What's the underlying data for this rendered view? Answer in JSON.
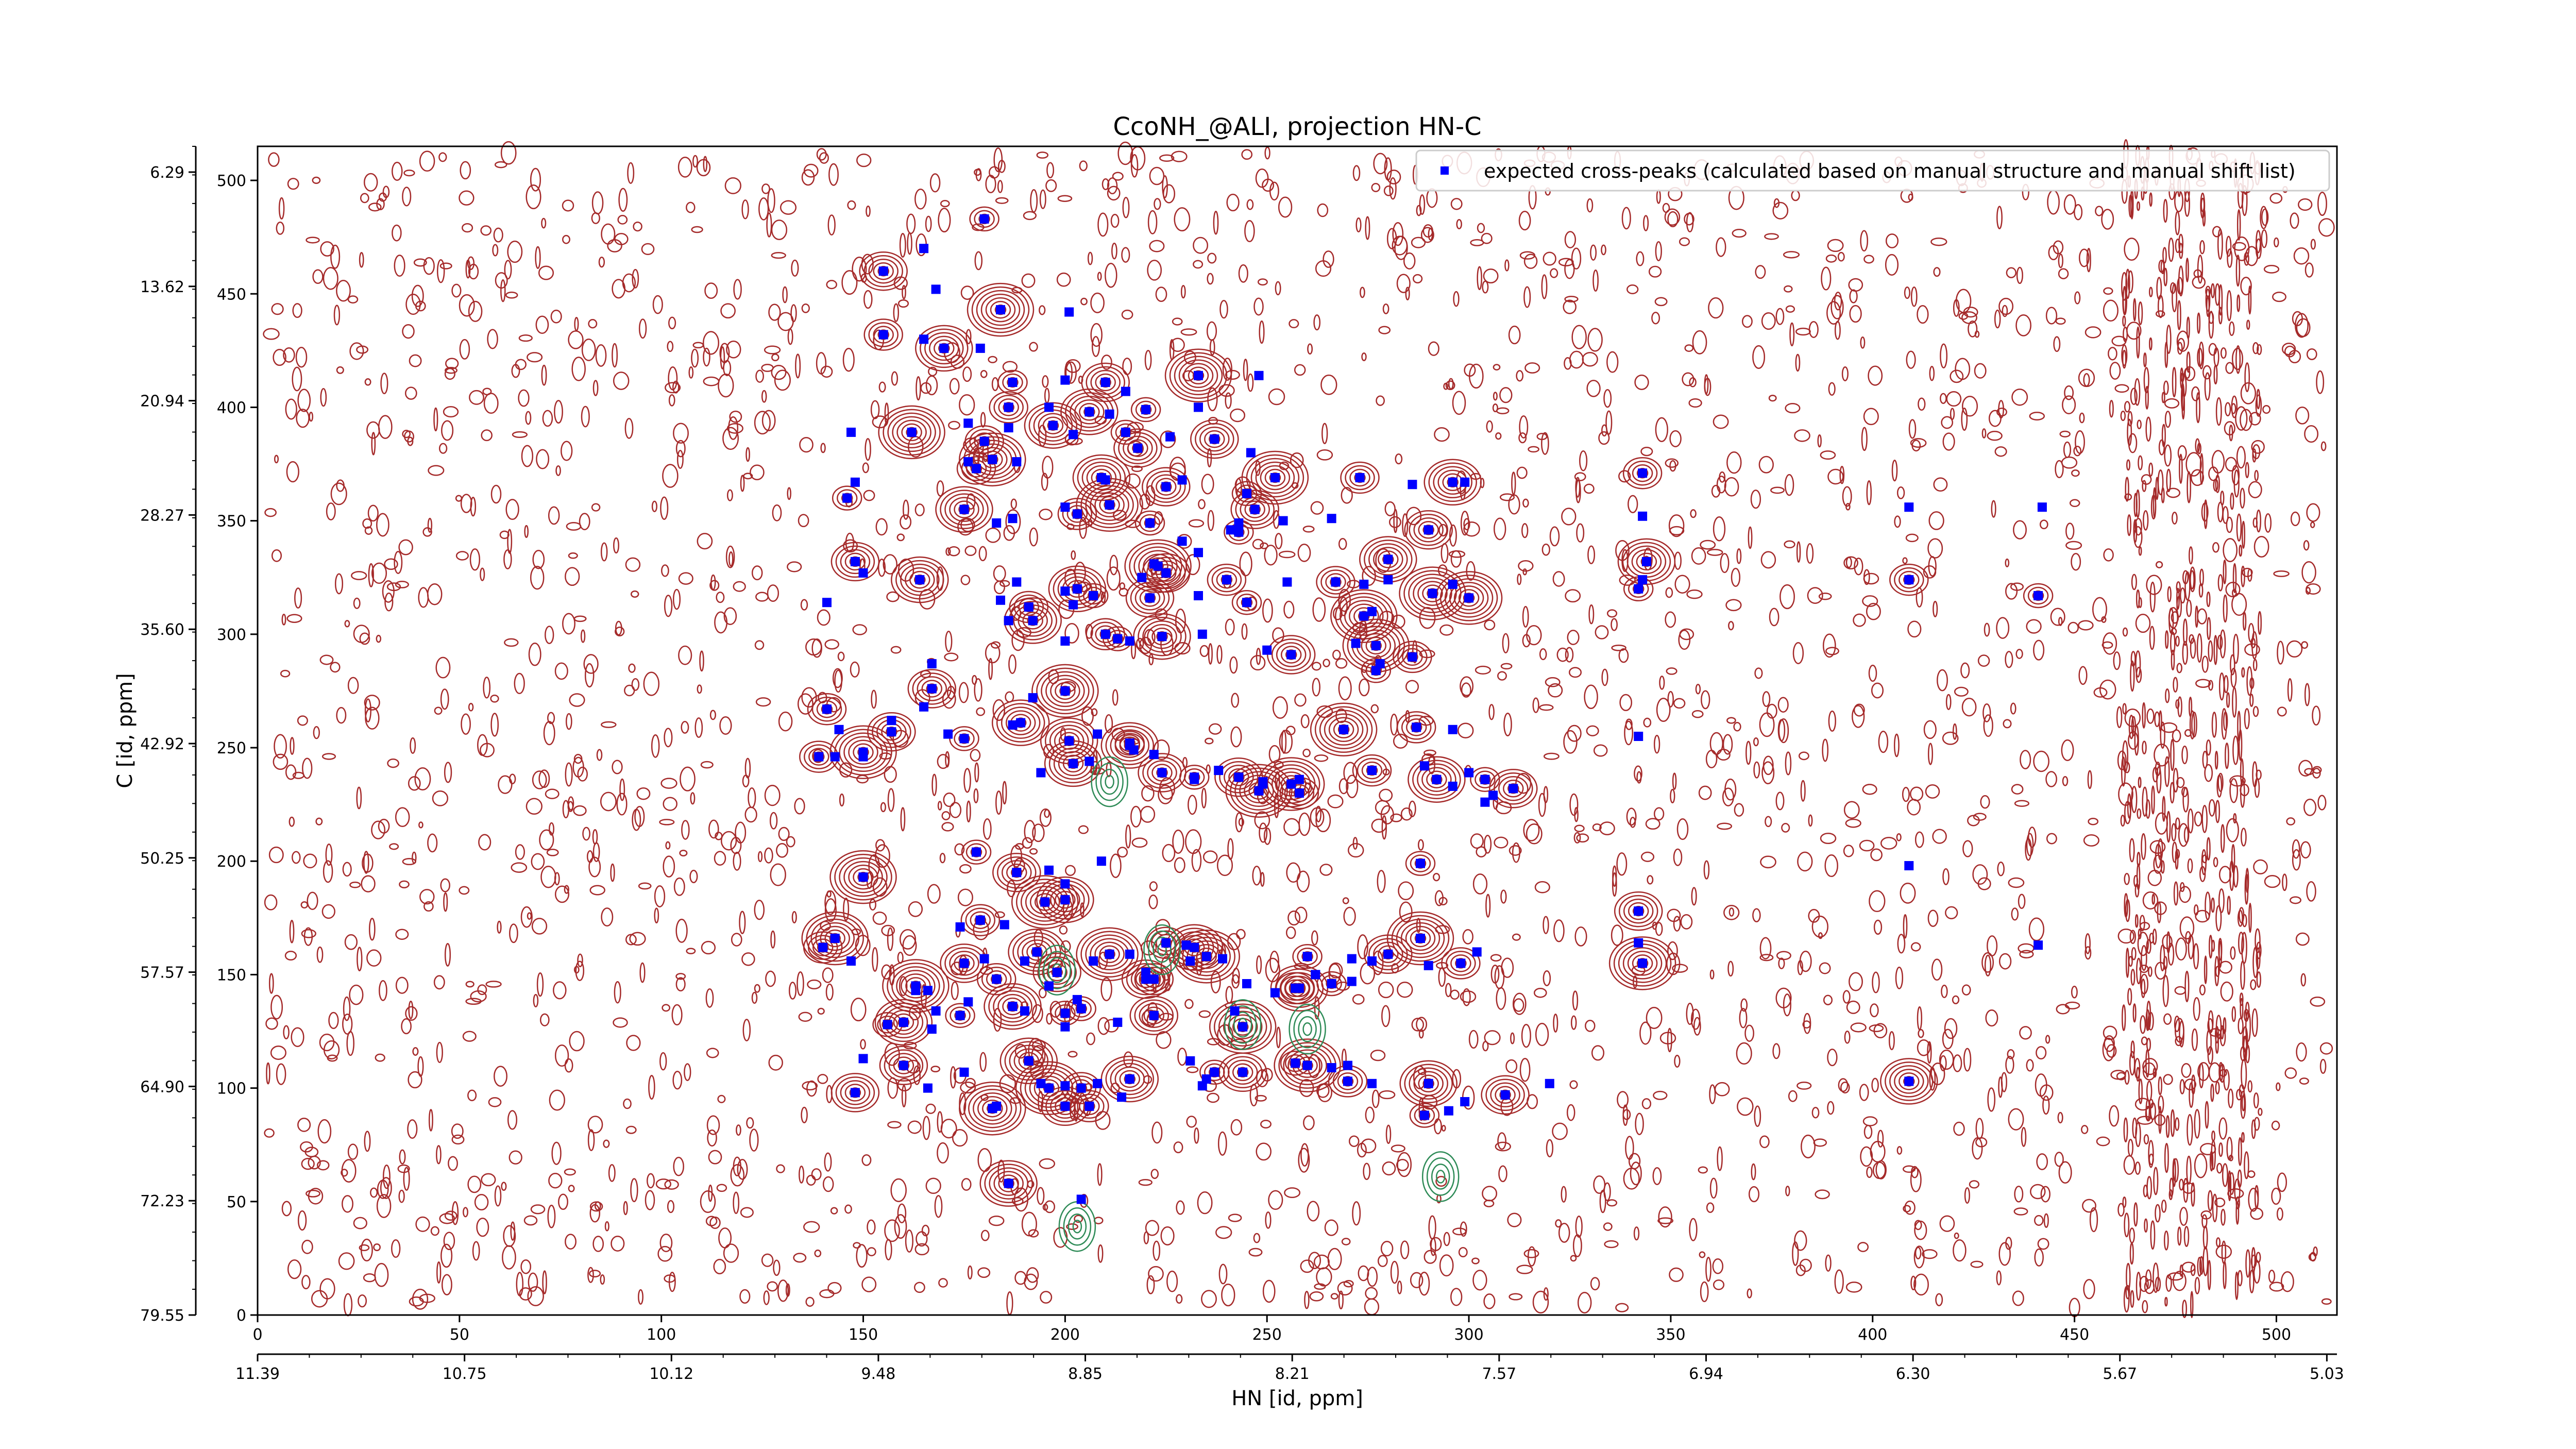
{
  "chart_data": {
    "type": "scatter",
    "title": "CcoNH_@ALI, projection HN-C",
    "xlabel": "HN [id, ppm]",
    "ylabel": "C [id, ppm]",
    "xlim": [
      0,
      515
    ],
    "ylim": [
      0,
      515
    ],
    "grid": false,
    "legend_position": "top-right",
    "bottom_ticks": [
      "0",
      "50",
      "100",
      "150",
      "200",
      "250",
      "300",
      "350",
      "400",
      "450",
      "500"
    ],
    "right_ticks": [
      "0",
      "50",
      "100",
      "150",
      "200",
      "250",
      "300",
      "350",
      "400",
      "450",
      "500"
    ],
    "hn_ppm_ticks": [
      "11.39",
      "10.75",
      "10.12",
      "9.48",
      "8.85",
      "8.21",
      "7.57",
      "6.94",
      "6.30",
      "5.67",
      "5.03"
    ],
    "c_ppm_ticks": [
      "6.29",
      "13.62",
      "20.94",
      "28.27",
      "35.60",
      "42.92",
      "50.25",
      "57.57",
      "64.90",
      "72.23",
      "79.55"
    ],
    "colors": {
      "peaks": "#0000ff",
      "positive_contours": "#a52a2a",
      "negative_contours": "#2e8b57",
      "axes": "#000000",
      "legend_border": "#cccccc"
    },
    "series": [
      {
        "name": "expected cross-peaks (calculated based on manual structure and manual shift list)",
        "color": "#0000ff",
        "points": [
          [
            180,
            483
          ],
          [
            165,
            470
          ],
          [
            155,
            460
          ],
          [
            168,
            452
          ],
          [
            184,
            443
          ],
          [
            201,
            442
          ],
          [
            155,
            432
          ],
          [
            165,
            430
          ],
          [
            170,
            426
          ],
          [
            179,
            426
          ],
          [
            187,
            411
          ],
          [
            200,
            412
          ],
          [
            210,
            411
          ],
          [
            215,
            407
          ],
          [
            233,
            414
          ],
          [
            248,
            414
          ],
          [
            186,
            400
          ],
          [
            196,
            400
          ],
          [
            206,
            398
          ],
          [
            211,
            397
          ],
          [
            220,
            399
          ],
          [
            233,
            400
          ],
          [
            237,
            386
          ],
          [
            147,
            389
          ],
          [
            162,
            389
          ],
          [
            176,
            393
          ],
          [
            180,
            385
          ],
          [
            186,
            391
          ],
          [
            197,
            392
          ],
          [
            202,
            388
          ],
          [
            215,
            389
          ],
          [
            226,
            387
          ],
          [
            218,
            382
          ],
          [
            176,
            376
          ],
          [
            182,
            377
          ],
          [
            188,
            376
          ],
          [
            178,
            373
          ],
          [
            246,
            380
          ],
          [
            209,
            369
          ],
          [
            148,
            367
          ],
          [
            146,
            360
          ],
          [
            210,
            368
          ],
          [
            225,
            365
          ],
          [
            229,
            368
          ],
          [
            252,
            369
          ],
          [
            241,
            346
          ],
          [
            273,
            369
          ],
          [
            286,
            366
          ],
          [
            296,
            367
          ],
          [
            299,
            367
          ],
          [
            245,
            362
          ],
          [
            243,
            349
          ],
          [
            247,
            355
          ],
          [
            254,
            350
          ],
          [
            211,
            357
          ],
          [
            200,
            356
          ],
          [
            203,
            353
          ],
          [
            187,
            351
          ],
          [
            175,
            355
          ],
          [
            183,
            349
          ],
          [
            221,
            349
          ],
          [
            233,
            336
          ],
          [
            148,
            332
          ],
          [
            150,
            327
          ],
          [
            223,
            330
          ],
          [
            225,
            327
          ],
          [
            240,
            324
          ],
          [
            188,
            323
          ],
          [
            164,
            324
          ],
          [
            222,
            331
          ],
          [
            245,
            314
          ],
          [
            184,
            315
          ],
          [
            221,
            316
          ],
          [
            233,
            317
          ],
          [
            291,
            318
          ],
          [
            274,
            322
          ],
          [
            267,
            323
          ],
          [
            280,
            324
          ],
          [
            280,
            333
          ],
          [
            229,
            341
          ],
          [
            243,
            345
          ],
          [
            266,
            351
          ],
          [
            290,
            346
          ],
          [
            296,
            322
          ],
          [
            300,
            316
          ],
          [
            141,
            314
          ],
          [
            191,
            312
          ],
          [
            202,
            313
          ],
          [
            203,
            320
          ],
          [
            200,
            319
          ],
          [
            207,
            317
          ],
          [
            219,
            325
          ],
          [
            225,
            327
          ],
          [
            255,
            323
          ],
          [
            274,
            308
          ],
          [
            276,
            310
          ],
          [
            210,
            300
          ],
          [
            216,
            297
          ],
          [
            224,
            299
          ],
          [
            234,
            300
          ],
          [
            213,
            298
          ],
          [
            250,
            293
          ],
          [
            256,
            291
          ],
          [
            272,
            296
          ],
          [
            277,
            295
          ],
          [
            278,
            287
          ],
          [
            286,
            290
          ],
          [
            200,
            297
          ],
          [
            192,
            306
          ],
          [
            186,
            306
          ],
          [
            277,
            284
          ],
          [
            167,
            287
          ],
          [
            167,
            276
          ],
          [
            192,
            272
          ],
          [
            200,
            275
          ],
          [
            165,
            268
          ],
          [
            141,
            267
          ],
          [
            157,
            262
          ],
          [
            189,
            261
          ],
          [
            187,
            260
          ],
          [
            175,
            254
          ],
          [
            171,
            256
          ],
          [
            157,
            257
          ],
          [
            144,
            258
          ],
          [
            150,
            248
          ],
          [
            143,
            246
          ],
          [
            139,
            246
          ],
          [
            150,
            246
          ],
          [
            201,
            253
          ],
          [
            208,
            256
          ],
          [
            216,
            252
          ],
          [
            217,
            249
          ],
          [
            224,
            239
          ],
          [
            232,
            236
          ],
          [
            248,
            231
          ],
          [
            249,
            235
          ],
          [
            258,
            230
          ],
          [
            206,
            244
          ],
          [
            216,
            251
          ],
          [
            222,
            247
          ],
          [
            232,
            237
          ],
          [
            238,
            240
          ],
          [
            243,
            237
          ],
          [
            249,
            234
          ],
          [
            256,
            234
          ],
          [
            258,
            236
          ],
          [
            276,
            240
          ],
          [
            289,
            242
          ],
          [
            292,
            236
          ],
          [
            300,
            239
          ],
          [
            304,
            236
          ],
          [
            306,
            229
          ],
          [
            311,
            232
          ],
          [
            304,
            226
          ],
          [
            269,
            258
          ],
          [
            269,
            258
          ],
          [
            287,
            259
          ],
          [
            296,
            258
          ],
          [
            202,
            243
          ],
          [
            194,
            239
          ],
          [
            178,
            204
          ],
          [
            196,
            196
          ],
          [
            188,
            195
          ],
          [
            200,
            190
          ],
          [
            195,
            182
          ],
          [
            174,
            171
          ],
          [
            179,
            174
          ],
          [
            185,
            172
          ],
          [
            200,
            183
          ],
          [
            209,
            200
          ],
          [
            288,
            199
          ],
          [
            190,
            156
          ],
          [
            198,
            151
          ],
          [
            207,
            156
          ],
          [
            211,
            159
          ],
          [
            216,
            159
          ],
          [
            225,
            164
          ],
          [
            230,
            163
          ],
          [
            232,
            162
          ],
          [
            239,
            157
          ],
          [
            260,
            158
          ],
          [
            271,
            157
          ],
          [
            280,
            159
          ],
          [
            276,
            156
          ],
          [
            288,
            166
          ],
          [
            290,
            154
          ],
          [
            298,
            155
          ],
          [
            302,
            160
          ],
          [
            193,
            160
          ],
          [
            196,
            145
          ],
          [
            200,
            133
          ],
          [
            203,
            139
          ],
          [
            220,
            148
          ],
          [
            231,
            156
          ],
          [
            235,
            158
          ],
          [
            220,
            151
          ],
          [
            222,
            148
          ],
          [
            245,
            146
          ],
          [
            258,
            144
          ],
          [
            262,
            150
          ],
          [
            266,
            146
          ],
          [
            271,
            147
          ],
          [
            175,
            155
          ],
          [
            180,
            157
          ],
          [
            163,
            145
          ],
          [
            166,
            143
          ],
          [
            183,
            148
          ],
          [
            190,
            134
          ],
          [
            187,
            136
          ],
          [
            200,
            127
          ],
          [
            204,
            135
          ],
          [
            213,
            129
          ],
          [
            222,
            132
          ],
          [
            242,
            134
          ],
          [
            244,
            127
          ],
          [
            252,
            142
          ],
          [
            257,
            144
          ],
          [
            262,
            150
          ],
          [
            160,
            129
          ],
          [
            167,
            126
          ],
          [
            174,
            132
          ],
          [
            176,
            138
          ],
          [
            160,
            110
          ],
          [
            175,
            107
          ],
          [
            196,
            100
          ],
          [
            194,
            102
          ],
          [
            204,
            100
          ],
          [
            208,
            102
          ],
          [
            216,
            104
          ],
          [
            231,
            112
          ],
          [
            237,
            107
          ],
          [
            235,
            104
          ],
          [
            244,
            107
          ],
          [
            234,
            101
          ],
          [
            260,
            110
          ],
          [
            266,
            109
          ],
          [
            270,
            103
          ],
          [
            276,
            102
          ],
          [
            290,
            102
          ],
          [
            295,
            90
          ],
          [
            289,
            88
          ],
          [
            299,
            94
          ],
          [
            309,
            97
          ],
          [
            320,
            102
          ],
          [
            182,
            91
          ],
          [
            183,
            92
          ],
          [
            206,
            92
          ],
          [
            214,
            96
          ],
          [
            191,
            112
          ],
          [
            200,
            101
          ],
          [
            156,
            128
          ],
          [
            168,
            134
          ],
          [
            148,
            98
          ],
          [
            166,
            100
          ],
          [
            143,
            166
          ],
          [
            147,
            156
          ],
          [
            140,
            162
          ],
          [
            163,
            143
          ],
          [
            186,
            58
          ],
          [
            204,
            51
          ],
          [
            257,
            111
          ],
          [
            270,
            110
          ],
          [
            200,
            92
          ],
          [
            150,
            113
          ],
          [
            150,
            193
          ],
          [
            296,
            233
          ],
          [
            343,
            371
          ],
          [
            343,
            352
          ],
          [
            344,
            332
          ],
          [
            343,
            324
          ],
          [
            342,
            320
          ],
          [
            342,
            255
          ],
          [
            342,
            178
          ],
          [
            342,
            164
          ],
          [
            343,
            155
          ],
          [
            409,
            356
          ],
          [
            409,
            324
          ],
          [
            409,
            198
          ],
          [
            409,
            103
          ],
          [
            442,
            356
          ],
          [
            441,
            317
          ],
          [
            441,
            163
          ]
        ]
      }
    ]
  }
}
